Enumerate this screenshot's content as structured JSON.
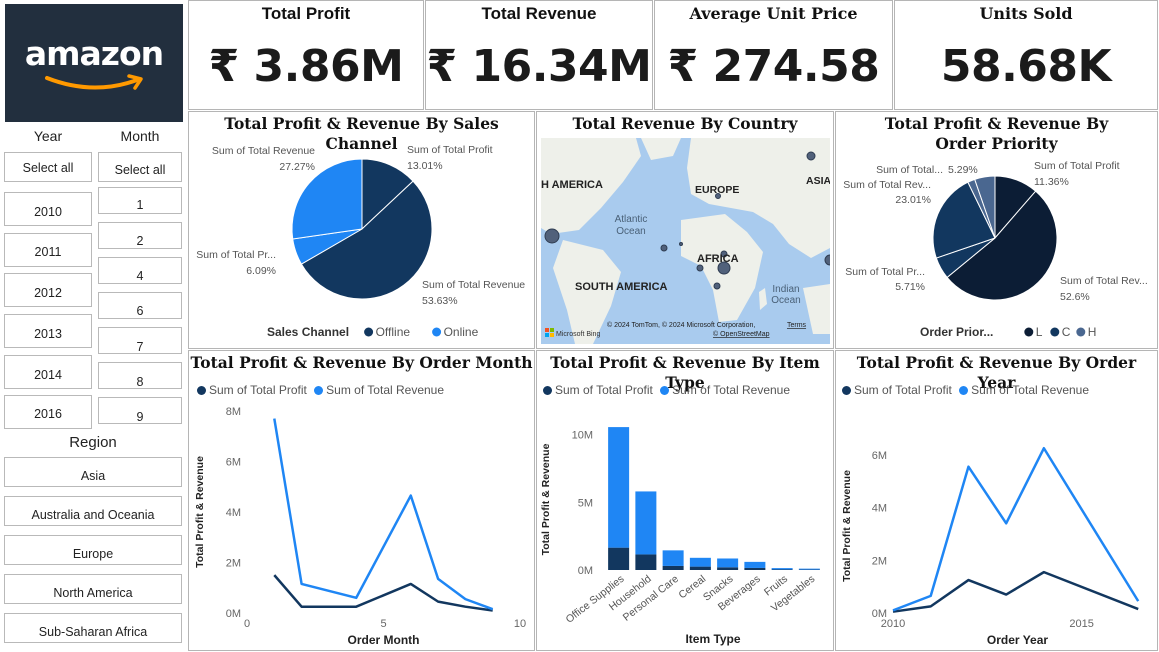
{
  "logo": {
    "text": "amazon",
    "bg": "#222f3e",
    "smile": "#ff9900"
  },
  "kpis": [
    {
      "title": "Total Profit",
      "value": "₹ 3.86M"
    },
    {
      "title": "Total Revenue",
      "value": "₹ 16.34M"
    },
    {
      "title": "Average Unit Price",
      "value": "₹ 274.58"
    },
    {
      "title": "Units Sold",
      "value": "58.68K"
    }
  ],
  "slicers": {
    "year_label": "Year",
    "month_label": "Month",
    "years": [
      "Select all",
      "2010",
      "2011",
      "2012",
      "2013",
      "2014",
      "2016"
    ],
    "months": [
      "Select all",
      "1",
      "2",
      "4",
      "6",
      "7",
      "8",
      "9"
    ],
    "region_label": "Region",
    "regions": [
      "Asia",
      "Australia and Oceania",
      "Europe",
      "North America",
      "Sub-Saharan Africa"
    ]
  },
  "colors": {
    "dark": "#12375f",
    "light": "#1f86f4",
    "darkest": "#0c1d35",
    "mid": "#1c4a86",
    "slate": "#4a6790"
  },
  "map": {
    "title": "Total Revenue By Country",
    "labels": [
      "H AMERICA",
      "EUROPE",
      "ASIA",
      "Atlantic",
      "Ocean",
      "AFRICA",
      "SOUTH AMERICA",
      "Indian",
      "Ocean"
    ],
    "attribution": "© 2024 TomTom, © 2024 Microsoft Corporation,",
    "terms": "Terms",
    "osm": "© OpenStreetMap",
    "bing": "Microsoft Bing"
  },
  "legend_common": {
    "profit": "Sum of Total Profit",
    "revenue": "Sum of Total Revenue"
  },
  "chart_data": [
    {
      "type": "pie",
      "title": "Total Profit & Revenue By Sales Channel",
      "legend_title": "Sales Channel",
      "legend": [
        "Offline",
        "Online"
      ],
      "slices": [
        {
          "label": "Sum of Total Profit",
          "pct": "13.01%",
          "value": 13.01,
          "color": "#12375f"
        },
        {
          "label": "Sum of Total Revenue",
          "pct": "53.63%",
          "value": 53.63,
          "color": "#12375f"
        },
        {
          "label": "Sum of Total Pr...",
          "pct": "6.09%",
          "value": 6.09,
          "color": "#1f86f4"
        },
        {
          "label": "Sum of Total Revenue",
          "pct": "27.27%",
          "value": 27.27,
          "color": "#1f86f4"
        }
      ]
    },
    {
      "type": "pie",
      "title": "Total Profit & Revenue By Order Priority",
      "legend_title": "Order Prior...",
      "legend": [
        "L",
        "C",
        "H"
      ],
      "slices": [
        {
          "label": "Sum of Total Profit",
          "pct": "11.36%",
          "value": 11.36,
          "color": "#0c1d35"
        },
        {
          "label": "Sum of Total Rev...",
          "pct": "52.6%",
          "value": 52.6,
          "color": "#0c1d35"
        },
        {
          "label": "Sum of Total Pr...",
          "pct": "5.71%",
          "value": 5.71,
          "color": "#12375f"
        },
        {
          "label": "Sum of Total Rev...",
          "pct": "23.01%",
          "value": 23.01,
          "color": "#12375f"
        },
        {
          "label": "Sum of Total...",
          "pct": "",
          "value": 1.9,
          "color": "#4a6790"
        },
        {
          "label": "",
          "pct": "5.29%",
          "value": 5.29,
          "color": "#4a6790"
        }
      ]
    },
    {
      "type": "line",
      "title": "Total Profit & Revenue By Order Month",
      "xlabel": "Order Month",
      "ylabel": "Total Profit & Revenue",
      "xticks": [
        "0",
        "5",
        "10"
      ],
      "yticks": [
        "0M",
        "2M",
        "4M",
        "6M",
        "8M"
      ],
      "xlim": [
        0,
        10
      ],
      "ylim": [
        0,
        8
      ],
      "x": [
        1,
        2,
        4,
        6,
        7,
        8,
        9
      ],
      "series": [
        {
          "name": "Sum of Total Profit",
          "values": [
            1.5,
            0.25,
            0.25,
            1.15,
            0.45,
            0.25,
            0.1
          ]
        },
        {
          "name": "Sum of Total Revenue",
          "values": [
            7.7,
            1.15,
            0.6,
            4.65,
            1.35,
            0.55,
            0.15
          ]
        }
      ]
    },
    {
      "type": "bar",
      "title": "Total Profit & Revenue By Item Type",
      "xlabel": "Item Type",
      "ylabel": "Total Profit & Revenue",
      "yticks": [
        "0M",
        "5M",
        "10M"
      ],
      "ylim": [
        0,
        11
      ],
      "categories": [
        "Office Supplies",
        "Household",
        "Personal Care",
        "Cereal",
        "Snacks",
        "Beverages",
        "Fruits",
        "Vegetables"
      ],
      "series": [
        {
          "name": "Sum of Total Profit",
          "values": [
            1.65,
            1.15,
            0.3,
            0.25,
            0.2,
            0.15,
            0.04,
            0.03
          ]
        },
        {
          "name": "Sum of Total Revenue",
          "values": [
            8.9,
            4.65,
            1.15,
            0.65,
            0.65,
            0.45,
            0.1,
            0.07
          ]
        }
      ]
    },
    {
      "type": "line",
      "title": "Total Profit & Revenue By Order Year",
      "xlabel": "Order Year",
      "ylabel": "Total Profit & Revenue",
      "xticks": [
        "2010",
        "2015"
      ],
      "yticks": [
        "0M",
        "2M",
        "4M",
        "6M"
      ],
      "xlim": [
        2010,
        2016.6
      ],
      "ylim": [
        0,
        6.6
      ],
      "x": [
        2010,
        2011,
        2012,
        2013,
        2014,
        2016.5
      ],
      "series": [
        {
          "name": "Sum of Total Profit",
          "values": [
            0.05,
            0.25,
            1.25,
            0.7,
            1.55,
            0.15
          ]
        },
        {
          "name": "Sum of Total Revenue",
          "values": [
            0.1,
            0.65,
            5.55,
            3.4,
            6.25,
            0.45
          ]
        }
      ]
    }
  ]
}
